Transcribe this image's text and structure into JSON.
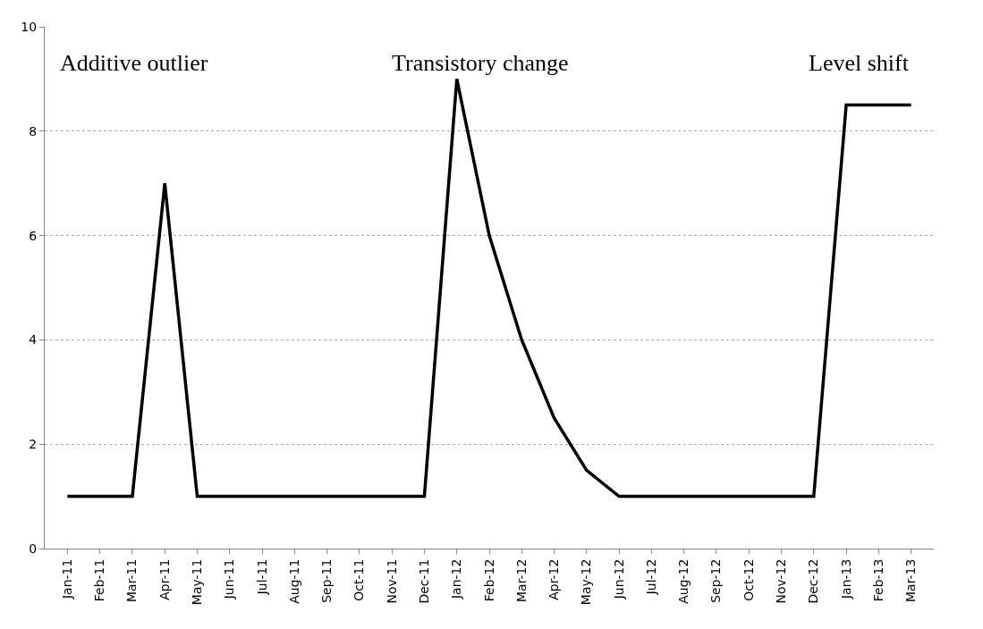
{
  "chart_data": {
    "type": "line",
    "categories": [
      "Jan-11",
      "Feb-11",
      "Mar-11",
      "Apr-11",
      "May-11",
      "Jun-11",
      "Jul-11",
      "Aug-11",
      "Sep-11",
      "Oct-11",
      "Nov-11",
      "Dec-11",
      "Jan-12",
      "Feb-12",
      "Mar-12",
      "Apr-12",
      "May-12",
      "Jun-12",
      "Jul-12",
      "Aug-12",
      "Sep-12",
      "Oct-12",
      "Nov-12",
      "Dec-12",
      "Jan-13",
      "Feb-13",
      "Mar-13"
    ],
    "series": [
      {
        "color": "#000000",
        "values": [
          1,
          1,
          1,
          7,
          1,
          1,
          1,
          1,
          1,
          1,
          1,
          1,
          9,
          6,
          4,
          2.5,
          1.5,
          1,
          1,
          1,
          1,
          1,
          1,
          1,
          8.5,
          8.5,
          8.5
        ]
      }
    ],
    "ylim": [
      0,
      10
    ],
    "yticks": [
      0,
      2,
      4,
      6,
      8,
      10
    ],
    "grid": "y",
    "marker": "none",
    "line_style": "solid",
    "annotations": [
      "Additive outlier",
      "Transistory change",
      "Level shift"
    ]
  }
}
